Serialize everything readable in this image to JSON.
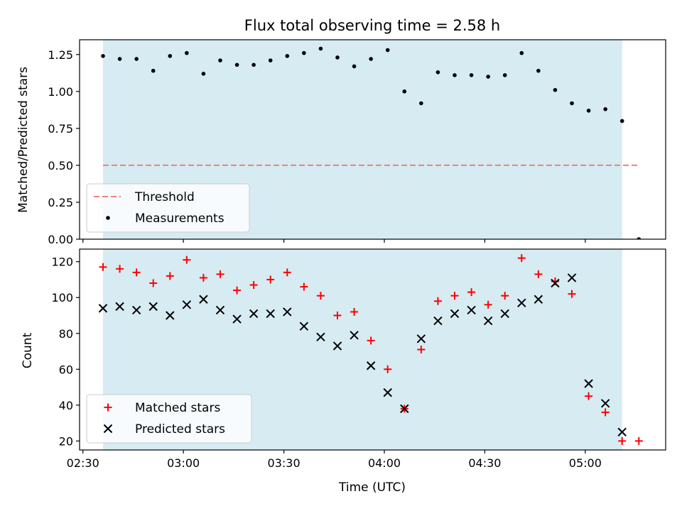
{
  "chart_data": [
    {
      "type": "scatter",
      "title": "Flux total observing time = 2.58 h",
      "xlabel": "",
      "ylabel": "Matched/Predicted stars",
      "ylim": [
        0,
        1.35
      ],
      "yticks": [
        0.0,
        0.25,
        0.5,
        0.75,
        1.0,
        1.25
      ],
      "ytick_labels": [
        "0.00",
        "0.25",
        "0.50",
        "0.75",
        "1.00",
        "1.25"
      ],
      "xlim_minutes_since_0230": [
        -1,
        174
      ],
      "shaded_interval": [
        "02:36",
        "05:11"
      ],
      "threshold": {
        "y": 0.5,
        "x": [
          "02:36",
          "05:16"
        ],
        "color": "#f08080",
        "style": "dashed"
      },
      "legend": {
        "position": "lower-left",
        "entries": [
          "Threshold",
          "Measurements"
        ]
      },
      "series": [
        {
          "name": "Measurements",
          "marker": "dot",
          "color": "#000000",
          "x": [
            "02:36",
            "02:41",
            "02:46",
            "02:51",
            "02:56",
            "03:01",
            "03:06",
            "03:11",
            "03:16",
            "03:21",
            "03:26",
            "03:31",
            "03:36",
            "03:41",
            "03:46",
            "03:51",
            "03:56",
            "04:01",
            "04:06",
            "04:11",
            "04:16",
            "04:21",
            "04:26",
            "04:31",
            "04:36",
            "04:41",
            "04:46",
            "04:51",
            "04:56",
            "05:01",
            "05:06",
            "05:11",
            "05:16"
          ],
          "y": [
            1.24,
            1.22,
            1.22,
            1.14,
            1.24,
            1.26,
            1.12,
            1.21,
            1.18,
            1.18,
            1.21,
            1.24,
            1.26,
            1.29,
            1.23,
            1.17,
            1.22,
            1.28,
            1.0,
            0.92,
            1.13,
            1.11,
            1.11,
            1.1,
            1.11,
            1.26,
            1.14,
            1.01,
            0.92,
            0.87,
            0.88,
            0.8,
            0.0
          ]
        }
      ]
    },
    {
      "type": "scatter",
      "title": "",
      "xlabel": "Time (UTC)",
      "ylabel": "Count",
      "ylim": [
        15,
        127
      ],
      "yticks": [
        20,
        40,
        60,
        80,
        100,
        120
      ],
      "ytick_labels": [
        "20",
        "40",
        "60",
        "80",
        "100",
        "120"
      ],
      "xticks": [
        "02:30",
        "03:00",
        "03:30",
        "04:00",
        "04:30",
        "05:00"
      ],
      "shaded_interval": [
        "02:36",
        "05:11"
      ],
      "legend": {
        "position": "lower-left",
        "entries": [
          "Matched stars",
          "Predicted stars"
        ]
      },
      "series": [
        {
          "name": "Matched stars",
          "marker": "plus",
          "color": "#ff0000",
          "x": [
            "02:36",
            "02:41",
            "02:46",
            "02:51",
            "02:56",
            "03:01",
            "03:06",
            "03:11",
            "03:16",
            "03:21",
            "03:26",
            "03:31",
            "03:36",
            "03:41",
            "03:46",
            "03:51",
            "03:56",
            "04:01",
            "04:06",
            "04:11",
            "04:16",
            "04:21",
            "04:26",
            "04:31",
            "04:36",
            "04:41",
            "04:46",
            "04:51",
            "04:56",
            "05:01",
            "05:06",
            "05:11",
            "05:16"
          ],
          "y": [
            117,
            116,
            114,
            108,
            112,
            121,
            111,
            113,
            104,
            107,
            110,
            114,
            106,
            101,
            90,
            92,
            76,
            60,
            38,
            71,
            98,
            101,
            103,
            96,
            101,
            122,
            113,
            109,
            102,
            45,
            36,
            20,
            20
          ]
        },
        {
          "name": "Predicted stars",
          "marker": "x",
          "color": "#000000",
          "x": [
            "02:36",
            "02:41",
            "02:46",
            "02:51",
            "02:56",
            "03:01",
            "03:06",
            "03:11",
            "03:16",
            "03:21",
            "03:26",
            "03:31",
            "03:36",
            "03:41",
            "03:46",
            "03:51",
            "03:56",
            "04:01",
            "04:06",
            "04:11",
            "04:16",
            "04:21",
            "04:26",
            "04:31",
            "04:36",
            "04:41",
            "04:46",
            "04:51",
            "04:56",
            "05:01",
            "05:06",
            "05:11"
          ],
          "y": [
            94,
            95,
            93,
            95,
            90,
            96,
            99,
            93,
            88,
            91,
            91,
            92,
            84,
            78,
            73,
            79,
            62,
            47,
            38,
            77,
            87,
            91,
            93,
            87,
            91,
            97,
            99,
            108,
            111,
            52,
            41,
            25
          ]
        }
      ]
    }
  ],
  "colors": {
    "shade": "#add8e6",
    "shade_opacity": 0.5,
    "legend_bg": "#ffffff"
  }
}
